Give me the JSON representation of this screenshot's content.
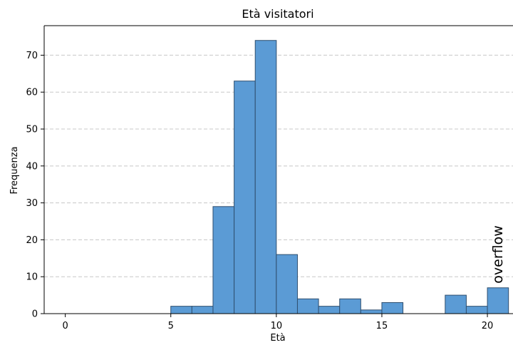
{
  "chart_data": {
    "type": "bar",
    "title": "Età visitatori",
    "xlabel": "Età",
    "ylabel": "Frequenza",
    "xlim": [
      -1,
      21
    ],
    "ylim": [
      0,
      78
    ],
    "bin_width": 1,
    "bins": [
      {
        "start": 5,
        "value": 2
      },
      {
        "start": 6,
        "value": 2
      },
      {
        "start": 7,
        "value": 29
      },
      {
        "start": 8,
        "value": 63
      },
      {
        "start": 9,
        "value": 74
      },
      {
        "start": 10,
        "value": 16
      },
      {
        "start": 11,
        "value": 4
      },
      {
        "start": 12,
        "value": 2
      },
      {
        "start": 13,
        "value": 4
      },
      {
        "start": 14,
        "value": 1
      },
      {
        "start": 15,
        "value": 3
      },
      {
        "start": 16,
        "value": 0
      },
      {
        "start": 17,
        "value": 0
      },
      {
        "start": 18,
        "value": 5
      },
      {
        "start": 19,
        "value": 2
      },
      {
        "start": 20,
        "value": 7
      }
    ],
    "x_ticks": [
      0,
      5,
      10,
      15,
      20
    ],
    "y_ticks": [
      0,
      10,
      20,
      30,
      40,
      50,
      60,
      70
    ],
    "grid": "y-dashed",
    "bar_color": "#5b9bd5",
    "edge_color": "#2f4f6f",
    "annotation": {
      "text": "overflow",
      "x": 20.5,
      "y": 7
    }
  }
}
